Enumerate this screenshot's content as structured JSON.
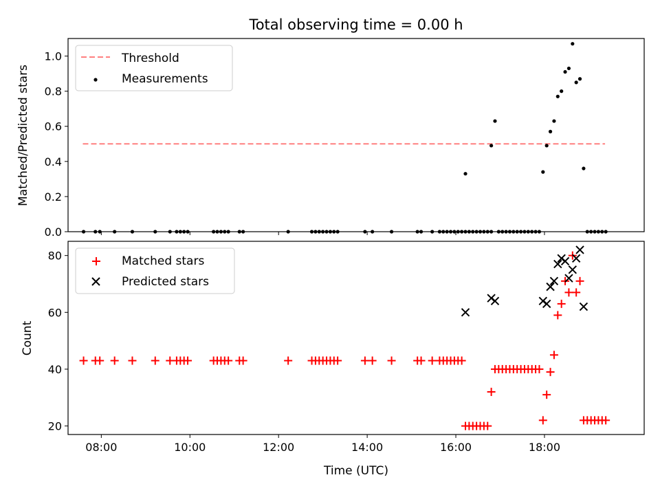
{
  "title": "Total observing time = 0.00 h",
  "xlabel": "Time (UTC)",
  "colors": {
    "threshold": "#ff7f7f",
    "measurements": "#000000",
    "matched": "#ff0000",
    "predicted": "#000000"
  },
  "chart_data": [
    {
      "type": "scatter",
      "ylabel": "Matched/Predicted stars",
      "xlim": [
        "07:15",
        "20:15"
      ],
      "ylim": [
        0,
        1.1
      ],
      "xticks": [
        "08:00",
        "10:00",
        "12:00",
        "14:00",
        "16:00",
        "18:00"
      ],
      "yticks": [
        "0.0",
        "0.2",
        "0.4",
        "0.6",
        "0.8",
        "1.0"
      ],
      "legend_position": "top-left",
      "legend": [
        "Threshold",
        "Measurements"
      ],
      "threshold": {
        "name": "Threshold",
        "value": 0.5,
        "x_range": [
          "07:35",
          "19:22"
        ],
        "style": "dashed"
      },
      "series": [
        {
          "name": "Measurements",
          "marker": "dot",
          "points": [
            [
              "07:36",
              0
            ],
            [
              "07:52",
              0
            ],
            [
              "07:58",
              0
            ],
            [
              "08:18",
              0
            ],
            [
              "08:42",
              0
            ],
            [
              "09:13",
              0
            ],
            [
              "09:33",
              0
            ],
            [
              "09:42",
              0
            ],
            [
              "09:47",
              0
            ],
            [
              "09:52",
              0
            ],
            [
              "09:57",
              0
            ],
            [
              "10:32",
              0
            ],
            [
              "10:37",
              0
            ],
            [
              "10:42",
              0
            ],
            [
              "10:47",
              0
            ],
            [
              "10:52",
              0
            ],
            [
              "11:07",
              0
            ],
            [
              "11:12",
              0
            ],
            [
              "12:13",
              0
            ],
            [
              "12:45",
              0
            ],
            [
              "12:50",
              0
            ],
            [
              "12:55",
              0
            ],
            [
              "13:00",
              0
            ],
            [
              "13:05",
              0
            ],
            [
              "13:10",
              0
            ],
            [
              "13:15",
              0
            ],
            [
              "13:20",
              0
            ],
            [
              "13:57",
              0
            ],
            [
              "14:07",
              0
            ],
            [
              "14:33",
              0
            ],
            [
              "15:08",
              0
            ],
            [
              "15:13",
              0
            ],
            [
              "15:28",
              0
            ],
            [
              "15:38",
              0
            ],
            [
              "15:43",
              0
            ],
            [
              "15:48",
              0
            ],
            [
              "15:53",
              0
            ],
            [
              "15:58",
              0
            ],
            [
              "16:03",
              0
            ],
            [
              "16:08",
              0
            ],
            [
              "16:13",
              0
            ],
            [
              "16:18",
              0
            ],
            [
              "16:23",
              0
            ],
            [
              "16:28",
              0
            ],
            [
              "16:33",
              0
            ],
            [
              "16:38",
              0
            ],
            [
              "16:43",
              0
            ],
            [
              "16:48",
              0
            ],
            [
              "16:58",
              0
            ],
            [
              "17:03",
              0
            ],
            [
              "17:08",
              0
            ],
            [
              "17:13",
              0
            ],
            [
              "17:18",
              0
            ],
            [
              "17:23",
              0
            ],
            [
              "17:28",
              0
            ],
            [
              "17:33",
              0
            ],
            [
              "17:38",
              0
            ],
            [
              "17:43",
              0
            ],
            [
              "17:48",
              0
            ],
            [
              "17:53",
              0
            ],
            [
              "18:58",
              0
            ],
            [
              "19:03",
              0
            ],
            [
              "19:08",
              0
            ],
            [
              "19:13",
              0
            ],
            [
              "19:18",
              0
            ],
            [
              "19:23",
              0
            ],
            [
              "16:13",
              0.33
            ],
            [
              "16:48",
              0.49
            ],
            [
              "16:53",
              0.63
            ],
            [
              "17:58",
              0.34
            ],
            [
              "18:03",
              0.49
            ],
            [
              "18:08",
              0.57
            ],
            [
              "18:13",
              0.63
            ],
            [
              "18:18",
              0.77
            ],
            [
              "18:23",
              0.8
            ],
            [
              "18:28",
              0.91
            ],
            [
              "18:33",
              0.93
            ],
            [
              "18:38",
              1.07
            ],
            [
              "18:43",
              0.85
            ],
            [
              "18:48",
              0.87
            ],
            [
              "18:53",
              0.36
            ]
          ]
        }
      ]
    },
    {
      "type": "scatter",
      "ylabel": "Count",
      "xlabel": "Time (UTC)",
      "xlim": [
        "07:15",
        "20:15"
      ],
      "ylim": [
        17,
        85
      ],
      "xticks": [
        "08:00",
        "10:00",
        "12:00",
        "14:00",
        "16:00",
        "18:00"
      ],
      "yticks": [
        "20",
        "40",
        "60",
        "80"
      ],
      "legend_position": "top-left",
      "legend": [
        "Matched stars",
        "Predicted stars"
      ],
      "series": [
        {
          "name": "Matched stars",
          "marker": "plus",
          "points": [
            [
              "07:36",
              43
            ],
            [
              "07:52",
              43
            ],
            [
              "07:58",
              43
            ],
            [
              "08:18",
              43
            ],
            [
              "08:42",
              43
            ],
            [
              "09:13",
              43
            ],
            [
              "09:33",
              43
            ],
            [
              "09:42",
              43
            ],
            [
              "09:47",
              43
            ],
            [
              "09:52",
              43
            ],
            [
              "09:57",
              43
            ],
            [
              "10:32",
              43
            ],
            [
              "10:37",
              43
            ],
            [
              "10:42",
              43
            ],
            [
              "10:47",
              43
            ],
            [
              "10:52",
              43
            ],
            [
              "11:07",
              43
            ],
            [
              "11:12",
              43
            ],
            [
              "12:13",
              43
            ],
            [
              "12:45",
              43
            ],
            [
              "12:50",
              43
            ],
            [
              "12:55",
              43
            ],
            [
              "13:00",
              43
            ],
            [
              "13:05",
              43
            ],
            [
              "13:10",
              43
            ],
            [
              "13:15",
              43
            ],
            [
              "13:20",
              43
            ],
            [
              "13:57",
              43
            ],
            [
              "14:07",
              43
            ],
            [
              "14:33",
              43
            ],
            [
              "15:08",
              43
            ],
            [
              "15:13",
              43
            ],
            [
              "15:28",
              43
            ],
            [
              "15:38",
              43
            ],
            [
              "15:43",
              43
            ],
            [
              "15:48",
              43
            ],
            [
              "15:53",
              43
            ],
            [
              "15:58",
              43
            ],
            [
              "16:03",
              43
            ],
            [
              "16:08",
              43
            ],
            [
              "16:13",
              20
            ],
            [
              "16:18",
              20
            ],
            [
              "16:23",
              20
            ],
            [
              "16:28",
              20
            ],
            [
              "16:33",
              20
            ],
            [
              "16:38",
              20
            ],
            [
              "16:43",
              20
            ],
            [
              "16:48",
              32
            ],
            [
              "16:53",
              40
            ],
            [
              "16:58",
              40
            ],
            [
              "17:03",
              40
            ],
            [
              "17:08",
              40
            ],
            [
              "17:13",
              40
            ],
            [
              "17:18",
              40
            ],
            [
              "17:23",
              40
            ],
            [
              "17:28",
              40
            ],
            [
              "17:33",
              40
            ],
            [
              "17:38",
              40
            ],
            [
              "17:43",
              40
            ],
            [
              "17:48",
              40
            ],
            [
              "17:53",
              40
            ],
            [
              "17:58",
              22
            ],
            [
              "18:03",
              31
            ],
            [
              "18:08",
              39
            ],
            [
              "18:13",
              45
            ],
            [
              "18:18",
              59
            ],
            [
              "18:23",
              63
            ],
            [
              "18:28",
              71
            ],
            [
              "18:33",
              67
            ],
            [
              "18:38",
              80
            ],
            [
              "18:43",
              67
            ],
            [
              "18:48",
              71
            ],
            [
              "18:53",
              22
            ],
            [
              "18:58",
              22
            ],
            [
              "19:03",
              22
            ],
            [
              "19:08",
              22
            ],
            [
              "19:13",
              22
            ],
            [
              "19:18",
              22
            ],
            [
              "19:23",
              22
            ]
          ]
        },
        {
          "name": "Predicted stars",
          "marker": "x",
          "points": [
            [
              "16:13",
              60
            ],
            [
              "16:48",
              65
            ],
            [
              "16:53",
              64
            ],
            [
              "17:58",
              64
            ],
            [
              "18:03",
              63
            ],
            [
              "18:08",
              69
            ],
            [
              "18:13",
              71
            ],
            [
              "18:18",
              77
            ],
            [
              "18:23",
              79
            ],
            [
              "18:28",
              78
            ],
            [
              "18:33",
              72
            ],
            [
              "18:38",
              75
            ],
            [
              "18:43",
              79
            ],
            [
              "18:48",
              82
            ],
            [
              "18:53",
              62
            ]
          ]
        }
      ]
    }
  ]
}
